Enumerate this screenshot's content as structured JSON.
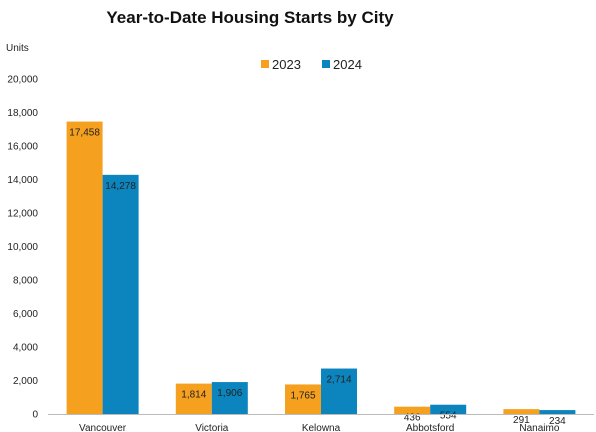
{
  "chart_data": {
    "type": "bar",
    "title": "Year-to-Date Housing Starts by City",
    "ylabel": "Units",
    "xlabel": "",
    "categories": [
      "Vancouver",
      "Victoria",
      "Kelowna",
      "Abbotsford",
      "Nanaimo"
    ],
    "series": [
      {
        "name": "2023",
        "color": "#f5a01e",
        "values": [
          17458,
          1814,
          1765,
          436,
          291
        ],
        "labels": [
          "17,458",
          "1,814",
          "1,765",
          "436",
          "291"
        ]
      },
      {
        "name": "2024",
        "color": "#0c84bd",
        "values": [
          14278,
          1906,
          2714,
          554,
          234
        ],
        "labels": [
          "14,278",
          "1,906",
          "2,714",
          "554",
          "234"
        ]
      }
    ],
    "ylim": [
      0,
      20000
    ],
    "yticks": [
      0,
      2000,
      4000,
      6000,
      8000,
      10000,
      12000,
      14000,
      16000,
      18000,
      20000
    ],
    "ytick_labels": [
      "0",
      "2,000",
      "4,000",
      "6,000",
      "8,000",
      "10,000",
      "12,000",
      "14,000",
      "16,000",
      "18,000",
      "20,000"
    ],
    "legend_position": "top",
    "grid": false
  }
}
